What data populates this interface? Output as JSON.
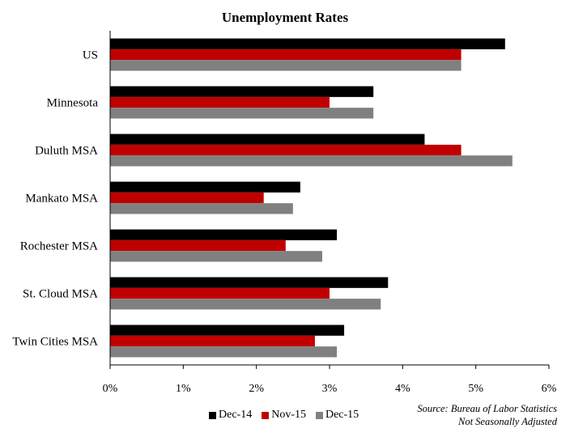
{
  "chart_data": {
    "type": "bar",
    "orientation": "horizontal",
    "title": "Unemployment Rates",
    "categories": [
      "US",
      "Minnesota",
      "Duluth MSA",
      "Mankato MSA",
      "Rochester MSA",
      "St. Cloud MSA",
      "Twin Cities MSA"
    ],
    "series": [
      {
        "name": "Dec-14",
        "color": "#000000",
        "values": [
          5.4,
          3.6,
          4.3,
          2.6,
          3.1,
          3.8,
          3.2
        ]
      },
      {
        "name": "Nov-15",
        "color": "#c00000",
        "values": [
          4.8,
          3.0,
          4.8,
          2.1,
          2.4,
          3.0,
          2.8
        ]
      },
      {
        "name": "Dec-15",
        "color": "#808080",
        "values": [
          4.8,
          3.6,
          5.5,
          2.5,
          2.9,
          3.7,
          3.1
        ]
      }
    ],
    "xlim": [
      0,
      6
    ],
    "xticks": [
      "0%",
      "1%",
      "2%",
      "3%",
      "4%",
      "5%",
      "6%"
    ],
    "grid": false,
    "legend_position": "bottom"
  },
  "source": {
    "line1": "Source: Bureau of Labor Statistics",
    "line2": "Not Seasonally Adjusted"
  }
}
